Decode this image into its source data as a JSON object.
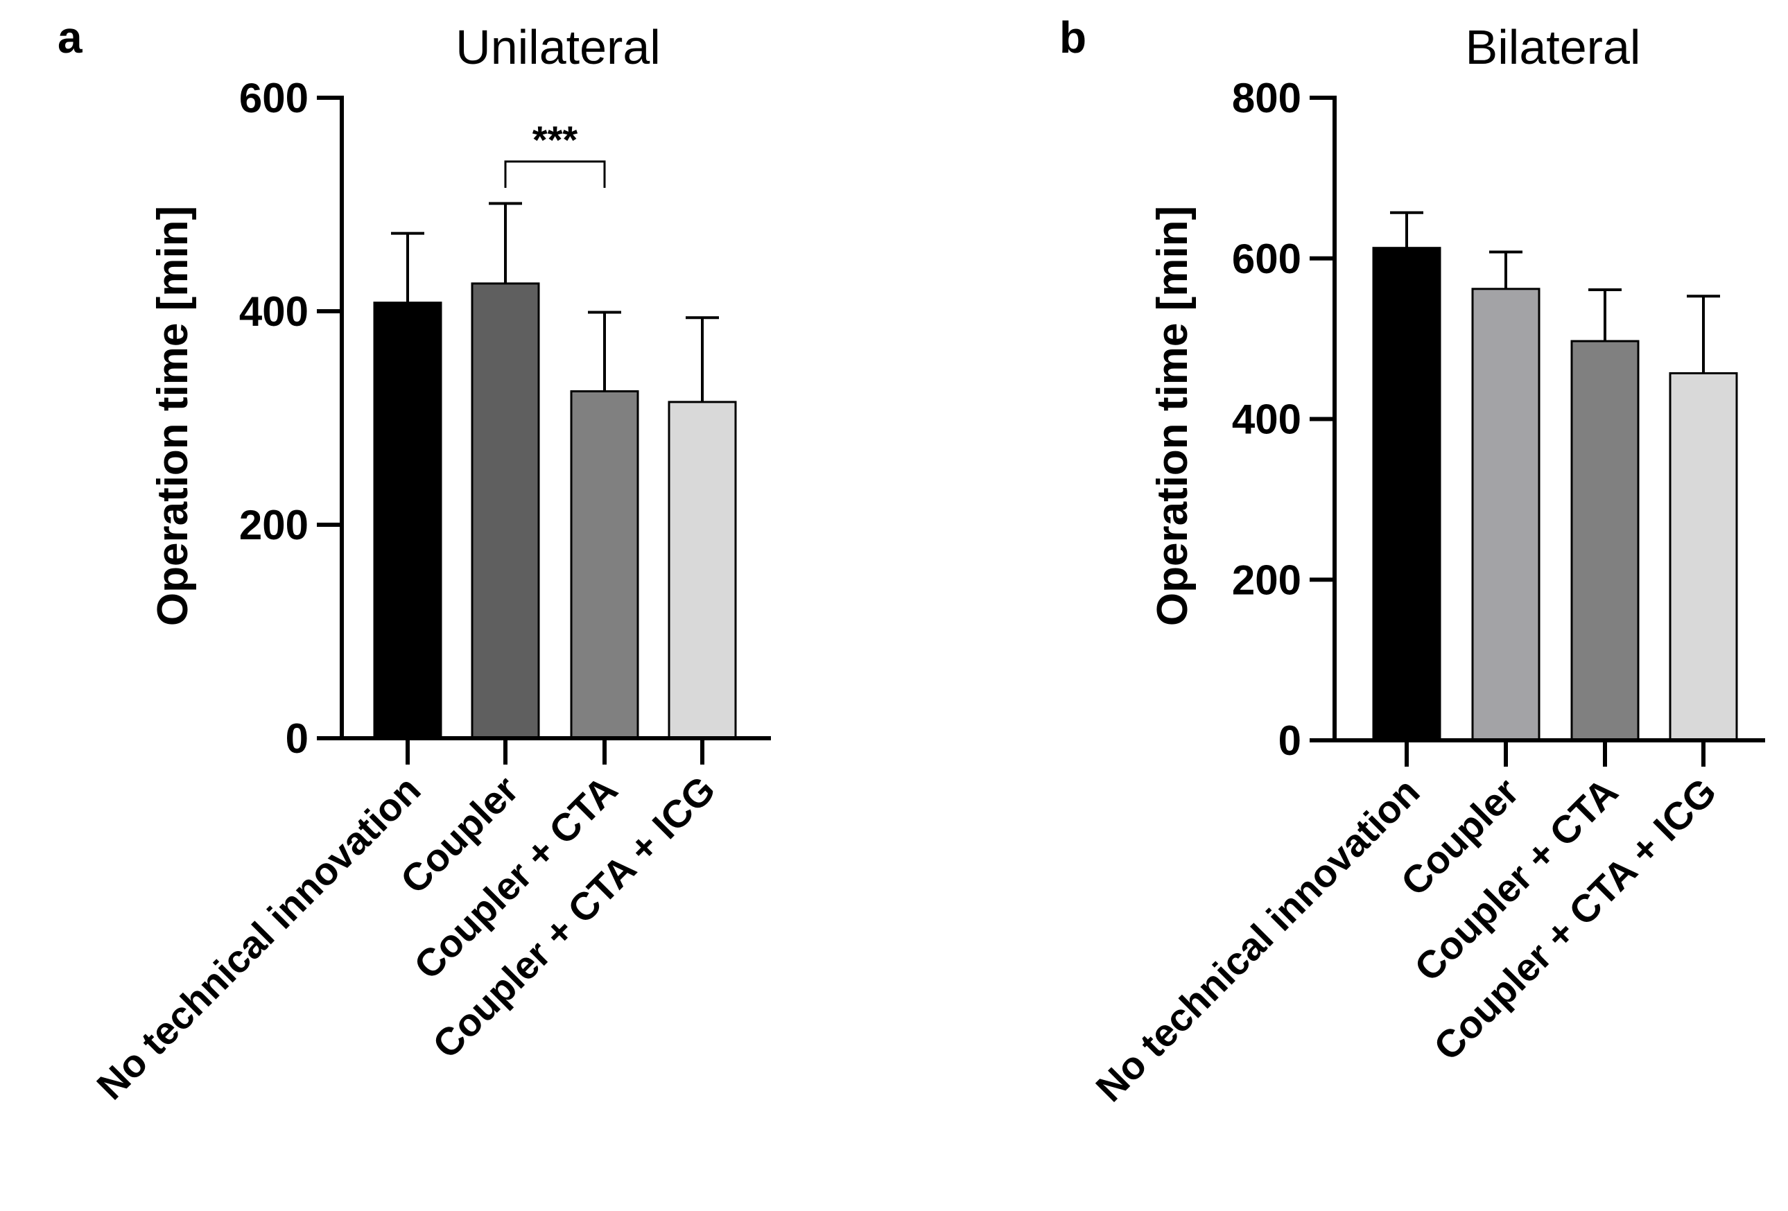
{
  "chart_data": [
    {
      "panel": "a",
      "type": "bar",
      "title": "Unilateral",
      "ylabel": "Operation time [min]",
      "xlabel": "",
      "ylim": [
        0,
        600
      ],
      "yticks": [
        0,
        200,
        400,
        600
      ],
      "categories": [
        "No technical innovation",
        "Coupler",
        "Coupler + CTA",
        "Coupler + CTA + ICG"
      ],
      "values": [
        408,
        426,
        325,
        315
      ],
      "errors": [
        65,
        75,
        74,
        79
      ],
      "colors": [
        "#000000",
        "#5f5f5f",
        "#808080",
        "#d9d9d9"
      ],
      "significance": [
        {
          "from": 1,
          "to": 2,
          "label": "***"
        }
      ]
    },
    {
      "panel": "b",
      "type": "bar",
      "title": "Bilateral",
      "ylabel": "Operation time [min]",
      "xlabel": "",
      "ylim": [
        0,
        800
      ],
      "yticks": [
        0,
        200,
        400,
        600,
        800
      ],
      "categories": [
        "No technical innovation",
        "Coupler",
        "Coupler + CTA",
        "Coupler + CTA + ICG"
      ],
      "values": [
        613,
        562,
        497,
        457
      ],
      "errors": [
        44,
        46,
        64,
        96
      ],
      "colors": [
        "#000000",
        "#a3a3a6",
        "#808080",
        "#d9d9d9"
      ],
      "significance": []
    }
  ]
}
